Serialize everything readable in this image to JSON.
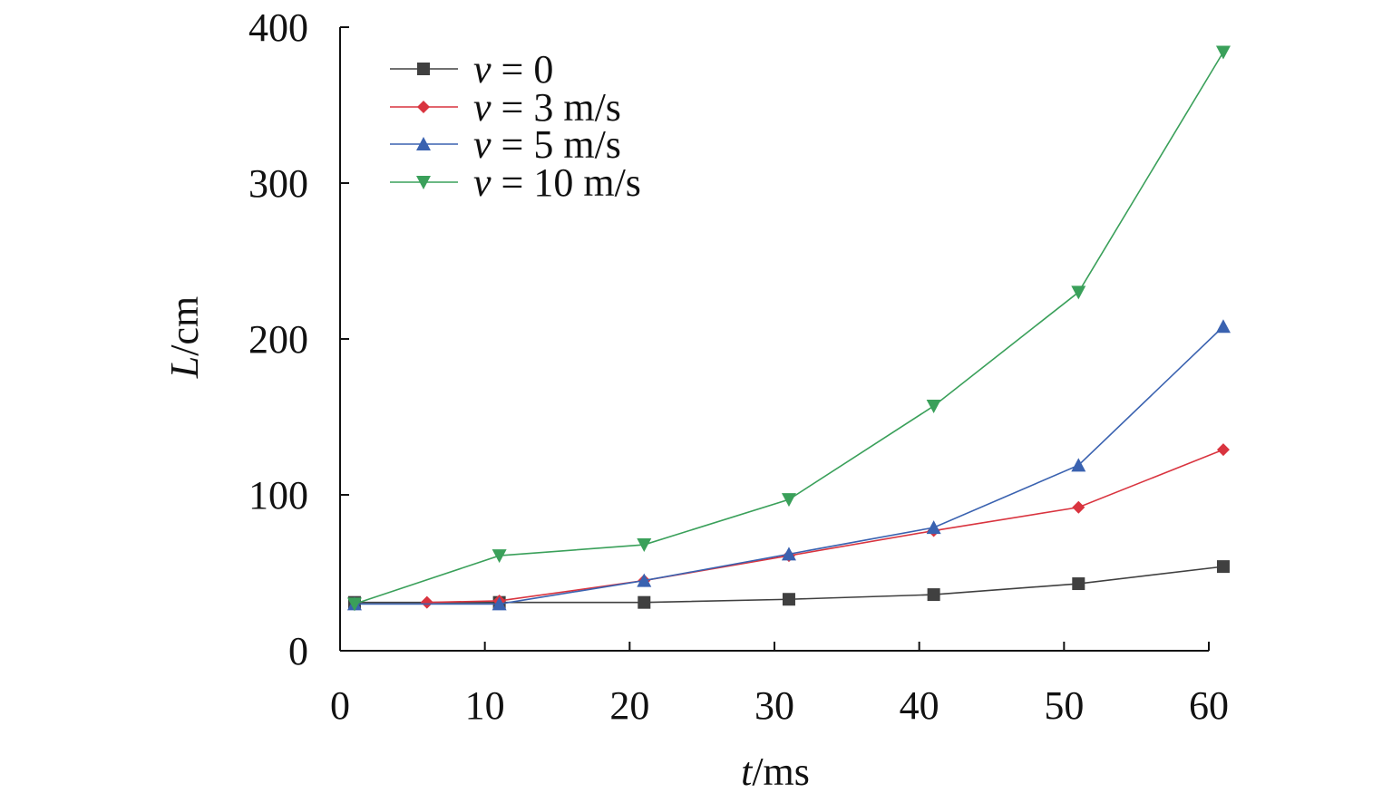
{
  "chart_data": {
    "type": "line",
    "xlabel": {
      "var": "t",
      "unit": "/ms"
    },
    "ylabel": {
      "var": "L",
      "unit": "/cm"
    },
    "xlim": [
      0,
      60
    ],
    "ylim": [
      0,
      400
    ],
    "xticks": [
      "0",
      "10",
      "20",
      "30",
      "40",
      "50",
      "60"
    ],
    "yticks": [
      "0",
      "100",
      "200",
      "300",
      "400"
    ],
    "grid": false,
    "legend_position": "top-left",
    "x": [
      1,
      11,
      21,
      31,
      41,
      51,
      61
    ],
    "series": [
      {
        "name_var": "v",
        "name_rest": " = 0",
        "color": "#404040",
        "marker": "square",
        "x": [
          1,
          11,
          21,
          31,
          41,
          51,
          61
        ],
        "values": [
          31,
          31,
          31,
          33,
          36,
          43,
          54
        ]
      },
      {
        "name_var": "v",
        "name_rest": " = 3 m/s",
        "color": "#d9343f",
        "marker": "diamond",
        "x": [
          6,
          11,
          21,
          31,
          41,
          51,
          61
        ],
        "values": [
          31,
          32,
          45,
          61,
          77,
          92,
          129
        ]
      },
      {
        "name_var": "v",
        "name_rest": " = 5 m/s",
        "color": "#3a62b0",
        "marker": "triangle-up",
        "x": [
          1,
          11,
          21,
          31,
          41,
          51,
          61
        ],
        "values": [
          30,
          30,
          45,
          62,
          79,
          119,
          208
        ]
      },
      {
        "name_var": "v",
        "name_rest": " = 10 m/s",
        "color": "#3aa05a",
        "marker": "triangle-down",
        "x": [
          1,
          11,
          21,
          31,
          41,
          51,
          61
        ],
        "values": [
          30,
          61,
          68,
          97,
          157,
          230,
          384
        ]
      }
    ]
  }
}
